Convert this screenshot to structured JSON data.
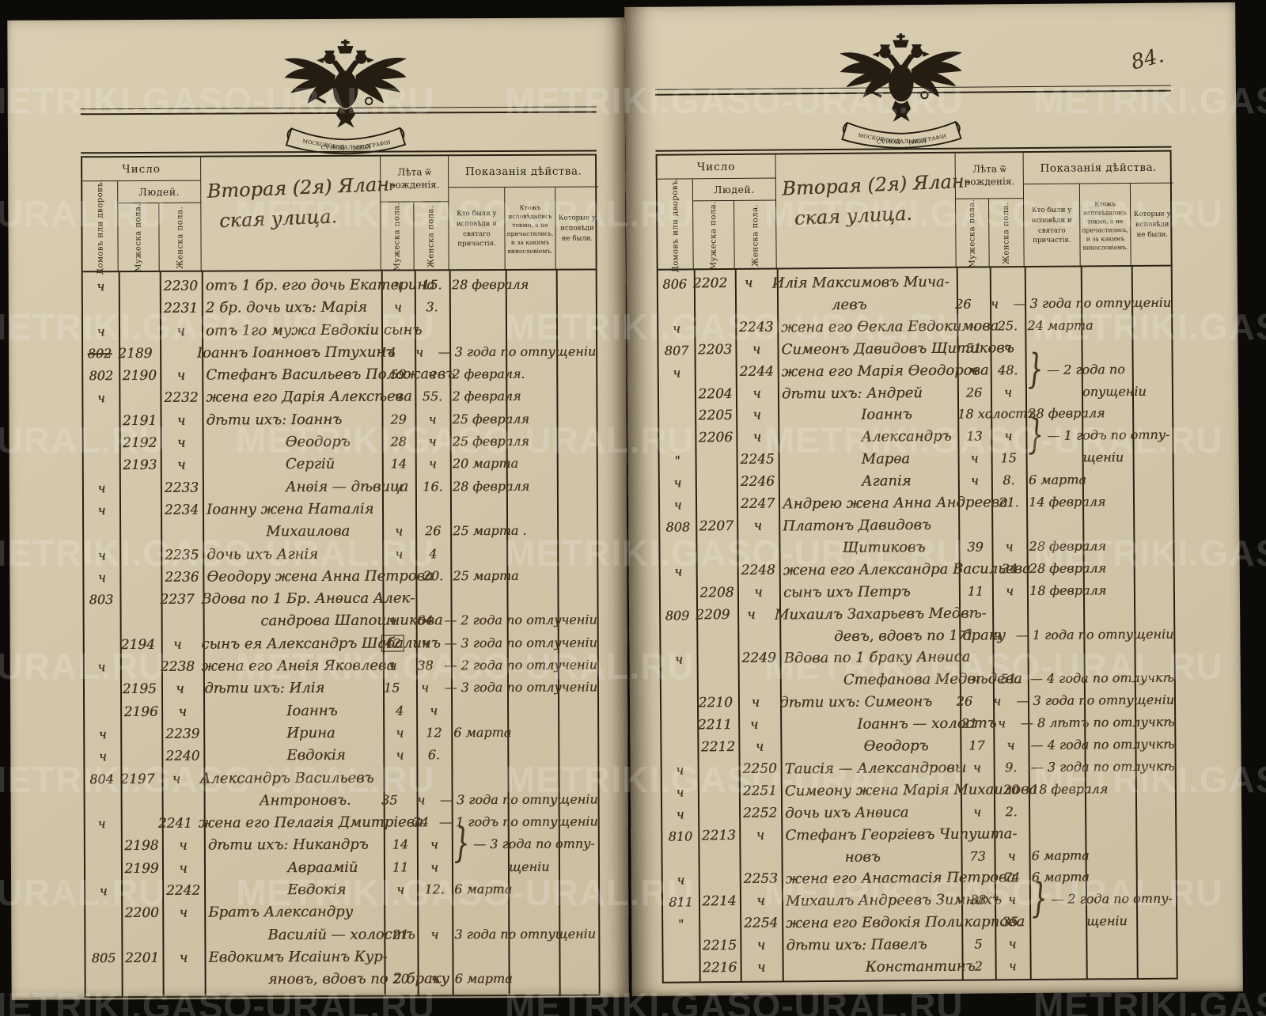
{
  "watermark": {
    "text": "METRIKI.GASO-URAL.RU"
  },
  "page_number": "84.",
  "emblem": {
    "name": "imperial-double-headed-eagle",
    "ribbon_left": "МОСКОВСКОЙ",
    "ribbon_center": "СѴНОДАЛЬНОЙ",
    "ribbon_right": "ТИПОГРАФІИ"
  },
  "header": {
    "number": "Число",
    "people": "Людей.",
    "houses": "Домовъ или дворовъ.",
    "male": "Мужеска пола.",
    "female": "Женска пола.",
    "age_title": "Лѣта ѿ рожденія.",
    "age_male": "Мужеска пола.",
    "age_female": "Женска пола.",
    "testimony": "Показанія дѣйства.",
    "col_confessed": "Кто были у исповѣди и святаго причастія.",
    "col_confessed_only": "Ктожъ исповѣдались токмо, а не причастились, и за какимъ винословіемъ.",
    "col_absent": "Которые у исповѣди не были."
  },
  "left_page": {
    "street_line1": "Вторая (2я) Ялан-",
    "street_line2": "ская улица.",
    "rows": [
      {
        "h": "ч",
        "f": "2230",
        "n": "отъ 1 бр. его дочь Екатерина",
        "a": "ч",
        "b": "15.",
        "t": "28 февраля"
      },
      {
        "f": "2231",
        "n": "2 бр. дочь ихъ: Марія",
        "a": "ч",
        "b": "3."
      },
      {
        "h": "ч",
        "f": "ч",
        "n": "отъ 1го мужа Евдокіи сынъ"
      },
      {
        "h": "802",
        "strike": true,
        "m": "2189",
        "n": "Іоаннъ Іоанновъ Птухинъ",
        "a": "14",
        "b": "ч",
        "t": "— 3 года по отпущеніи"
      },
      {
        "h": "802",
        "m": "2190",
        "f": "ч",
        "n": "Стефанъ Васильевъ Положаевъ",
        "a": "59",
        "b": "ч",
        "t": "2 февраля."
      },
      {
        "h": "ч",
        "f": "2232",
        "n": "жена его Дарія Алексѣева",
        "a": "ч",
        "b": "55.",
        "t": "2 февраля"
      },
      {
        "m": "2191",
        "f": "ч",
        "n": "дѣти ихъ: Іоаннъ",
        "a": "29",
        "b": "ч",
        "t": "25 февраля"
      },
      {
        "m": "2192",
        "f": "ч",
        "n": "Ѳеодоръ",
        "i": 1,
        "a": "28",
        "b": "ч",
        "t": "25 февраля"
      },
      {
        "m": "2193",
        "f": "ч",
        "n": "Сергій",
        "i": 1,
        "a": "14",
        "b": "ч",
        "t": "20 марта"
      },
      {
        "h": "ч",
        "f": "2233",
        "n": "Анѳія — дѣвица",
        "i": 1,
        "a": "ч",
        "b": "16.",
        "t": "28 февраля"
      },
      {
        "h": "ч",
        "f": "2234",
        "n": "Іоанну жена Наталія",
        "n2": "Михаилова",
        "a": "ч",
        "b": "26",
        "t": "25 марта ."
      },
      {
        "h": "ч",
        "f": "2235",
        "n": "дочь ихъ Агнія",
        "a": "ч",
        "b": "4"
      },
      {
        "h": "ч",
        "f": "2236",
        "n": "Ѳеодору жена Анна Петрова",
        "b": "20.",
        "t": "25 марта"
      },
      {
        "h": "803",
        "f": "2237",
        "n": "Вдова по 1 Бр. Анѳиса Алек-",
        "n2": "сандрова Шапошникова",
        "a": "ч",
        "b": "64",
        "t": "— 2 года по отлученіи"
      },
      {
        "m": "2194",
        "f": "ч",
        "n": "сынъ ея Александръ Шабалинъ",
        "a": "42",
        "box": true,
        "b": "ч",
        "t": "— 3 года по отлученіи"
      },
      {
        "h": "ч",
        "f": "2238",
        "n": "жена его Анѳія Яковлева",
        "a": "ч",
        "b": "38",
        "t": "— 2 года по отлученіи"
      },
      {
        "m": "2195",
        "f": "ч",
        "n": "дѣти ихъ: Илія",
        "a": "15",
        "b": "ч",
        "t": "— 3 года по отлученіи"
      },
      {
        "m": "2196",
        "f": "ч",
        "n": "Іоаннъ",
        "i": 1,
        "a": "4",
        "b": "ч"
      },
      {
        "h": "ч",
        "f": "2239",
        "n": "Ирина",
        "i": 1,
        "a": "ч",
        "b": "12",
        "t": "6 марта"
      },
      {
        "h": "ч",
        "f": "2240",
        "n": "Евдокія",
        "i": 1,
        "a": "ч",
        "b": "6."
      },
      {
        "h": "804",
        "m": "2197",
        "f": "ч",
        "n": "Александръ Васильевъ",
        "n2": "Антроновъ.",
        "a": "35",
        "b": "ч",
        "t": "— 3 года по отпущеніи"
      },
      {
        "h": "ч",
        "f": "2241",
        "n": "жена его Пелагія Дмитріева",
        "b": "34",
        "t": "— 1 годъ по отпущеніи"
      },
      {
        "m": "2198",
        "f": "ч",
        "n": "дѣти ихъ: Никандръ",
        "a": "14",
        "b": "ч",
        "t": "} — 3 года по отпу-"
      },
      {
        "m": "2199",
        "f": "ч",
        "n": "Авраамій",
        "i": 1,
        "a": "11",
        "b": "ч",
        "t": "щеніи",
        "ti": true
      },
      {
        "h": "ч",
        "f": "2242",
        "n": "Евдокія",
        "i": 1,
        "a": "ч",
        "b": "12.",
        "t": "6 марта"
      },
      {
        "m": "2200",
        "f": "ч",
        "n": "Братъ Александру",
        "n2": "Василій — холостъ",
        "a": "21",
        "b": "ч",
        "t": "3 года по отпущеніи"
      },
      {
        "h": "805",
        "m": "2201",
        "f": "ч",
        "n": "Евдокимъ Исаіинъ Кур-",
        "n2": "яновъ, вдовъ по 2 браку",
        "a": "70",
        "b": "ч",
        "t": "6 марта"
      }
    ]
  },
  "right_page": {
    "street_line1": "Вторая (2я) Ялан-",
    "street_line2": "ская улица.",
    "rows": [
      {
        "h": "806",
        "m": "2202",
        "f": "ч",
        "n": "Илія Максимовъ Мича-",
        "n2": "левъ",
        "a": "26",
        "b": "ч",
        "t": "— 3 года по отпущеніи"
      },
      {
        "h": "ч",
        "f": "2243",
        "n": "жена его Ѳекла Евдокимова",
        "a": "ч",
        "b": "25.",
        "t": "24 марта"
      },
      {
        "h": "807",
        "m": "2203",
        "f": "ч",
        "n": "Симеонъ Давидовъ Щитиковъ",
        "a": "51",
        "b": "ч"
      },
      {
        "h": "ч",
        "f": "2244",
        "n": "жена его Марія Ѳеодорова",
        "a": "ч",
        "b": "48.",
        "t": "} — 2 года по"
      },
      {
        "m": "2204",
        "f": "ч",
        "n": "дѣти ихъ: Андрей",
        "a": "26",
        "b": "ч",
        "t": "опущеніи",
        "ti": true
      },
      {
        "m": "2205",
        "f": "ч",
        "n": "Іоаннъ",
        "i": 1,
        "a": "18 холостъ",
        "t": "28 февраля"
      },
      {
        "m": "2206",
        "f": "ч",
        "n": "Александръ",
        "i": 1,
        "a": "13",
        "b": "ч",
        "t": "} — 1 годъ по отпу-"
      },
      {
        "h": "\"",
        "f": "2245",
        "n": "Марѳа",
        "i": 1,
        "a": "ч",
        "b": "15",
        "t": "щеніи",
        "ti": true
      },
      {
        "h": "ч",
        "f": "2246",
        "n": "Агапія",
        "i": 1,
        "a": "ч",
        "b": "8.",
        "t": "6 марта"
      },
      {
        "h": "ч",
        "f": "2247",
        "n": "Андрею жена Анна Андреева.",
        "b": "21.",
        "t": "14 февраля"
      },
      {
        "h": "808",
        "m": "2207",
        "f": "ч",
        "n": "Платонъ Давидовъ",
        "n2": "Щитиковъ",
        "a": "39",
        "b": "ч",
        "t": "28 февраля"
      },
      {
        "h": "ч",
        "f": "2248",
        "n": "жена его Александра Васильева",
        "b": "34",
        "t": "28 февраля"
      },
      {
        "m": "2208",
        "f": "ч",
        "n": "сынъ ихъ Петръ",
        "a": "11",
        "b": "ч",
        "t": "18 февраля"
      },
      {
        "h": "809",
        "m": "2209",
        "f": "ч",
        "n": "Михаилъ Захарьевъ Медвѣ-",
        "n2": "девъ, вдовъ по 1 браку",
        "a": "71",
        "b": "ч",
        "t": "— 1 года по отпущеніи"
      },
      {
        "h": "ч",
        "f": "2249",
        "n": "Вдова по 1 браку Анѳиса",
        "n2": "Стефанова Медвѣдева",
        "a": "ч",
        "b": "51.",
        "t": "— 4 года по отлучкѣ"
      },
      {
        "m": "2210",
        "f": "ч",
        "n": "дѣти ихъ: Симеонъ",
        "a": "26",
        "b": "ч",
        "t": "— 3 года по отпущеніи"
      },
      {
        "m": "2211",
        "f": "ч",
        "n": "Іоаннъ — холостъ",
        "i": 1,
        "a": "21",
        "b": "ч",
        "t": "— 8 лѣтъ по отлучкѣ"
      },
      {
        "m": "2212",
        "f": "ч",
        "n": "Ѳеодоръ",
        "i": 1,
        "a": "17",
        "b": "ч",
        "t": "— 4 года по отлучкѣ"
      },
      {
        "h": "ч",
        "f": "2250",
        "n": "Таисія — Александровы",
        "a": "ч",
        "b": "9.",
        "t": "— 3 года по отлучкѣ"
      },
      {
        "h": "ч",
        "f": "2251",
        "n": "Симеону жена Марія Михаилова",
        "b": "20",
        "t": "18 февраля"
      },
      {
        "h": "ч",
        "f": "2252",
        "n": "дочь ихъ Анѳиса",
        "a": "ч",
        "b": "2."
      },
      {
        "h": "810",
        "m": "2213",
        "f": "ч",
        "n": "Стефанъ Георгіевъ Чипушта-",
        "n2": "новъ",
        "a": "73",
        "b": "ч",
        "t": "6 марта"
      },
      {
        "h": "ч",
        "f": "2253",
        "n": "жена его Анастасія Петрова",
        "b": "74",
        "t": "6 марта"
      },
      {
        "h": "811",
        "m": "2214",
        "f": "ч",
        "n": "Михаилъ Андреевъ Зимнихъ",
        "a": "38",
        "b": "ч",
        "t": "} — 2 года по отпу-"
      },
      {
        "h": "\"",
        "f": "2254",
        "n": "жена его Евдокія Поликарпова",
        "b": "35.",
        "t": "щеніи",
        "ti": true
      },
      {
        "m": "2215",
        "f": "ч",
        "n": "дѣти ихъ: Павелъ",
        "a": "5",
        "b": "ч"
      },
      {
        "m": "2216",
        "f": "ч",
        "n": "Константинъ",
        "i": 1,
        "a": "2",
        "b": "ч"
      }
    ]
  }
}
